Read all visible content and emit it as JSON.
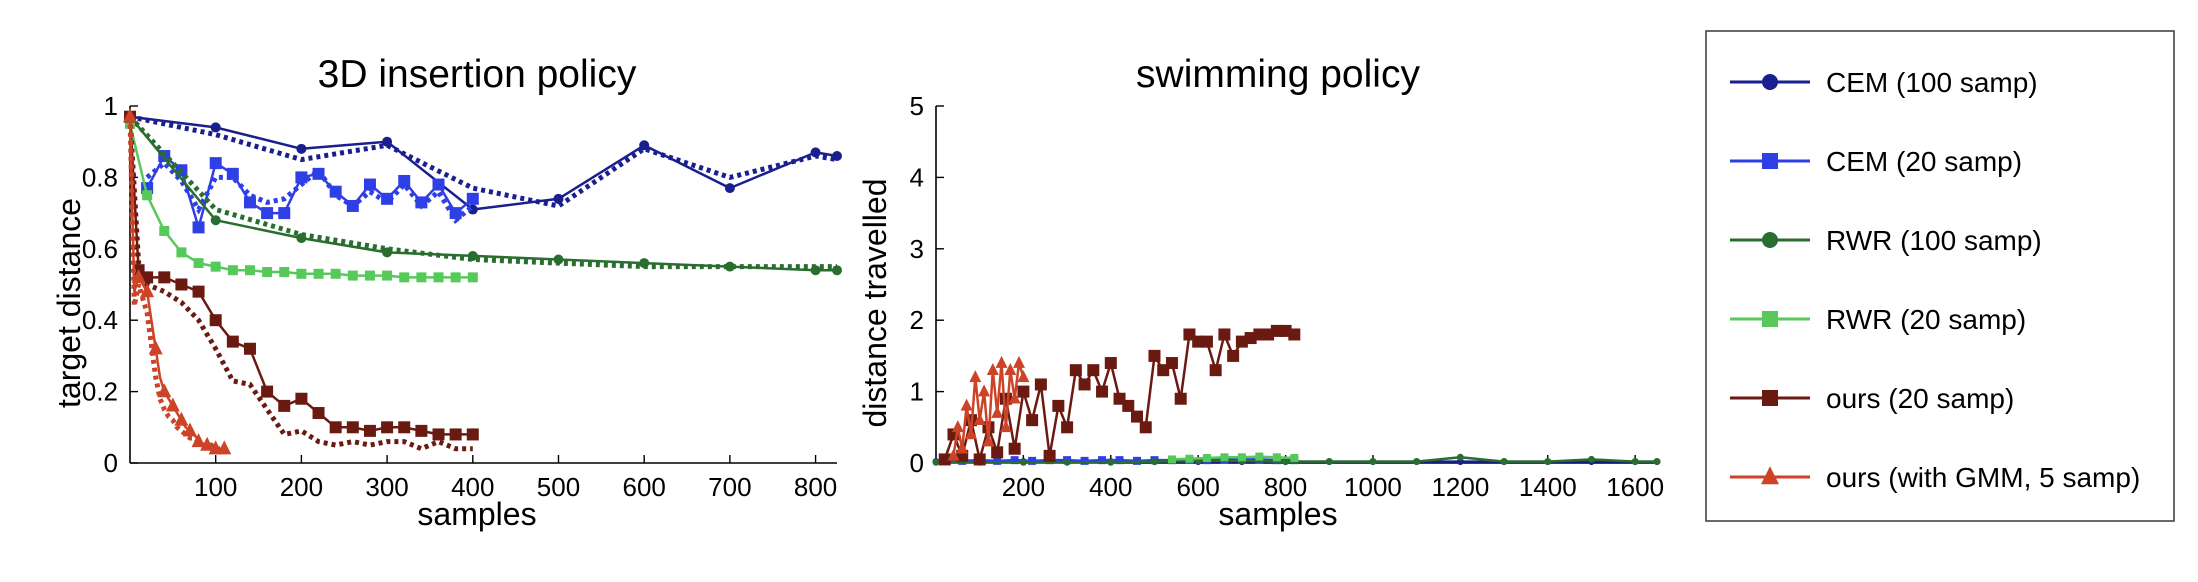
{
  "colors": {
    "cem100": "#1a1f8f",
    "cem20": "#2f3fe6",
    "rwr100": "#2a6e2f",
    "rwr20": "#57c95a",
    "ours20": "#6b1a12",
    "oursgmm": "#cd4327"
  },
  "legend": [
    {
      "key": "cem100",
      "label": "CEM (100 samp)",
      "marker": "circle"
    },
    {
      "key": "cem20",
      "label": "CEM (20 samp)",
      "marker": "square"
    },
    {
      "key": "rwr100",
      "label": "RWR (100 samp)",
      "marker": "circle"
    },
    {
      "key": "rwr20",
      "label": "RWR (20 samp)",
      "marker": "square"
    },
    {
      "key": "ours20",
      "label": "ours (20 samp)",
      "marker": "square"
    },
    {
      "key": "oursgmm",
      "label": "ours (with GMM, 5 samp)",
      "marker": "triangle"
    }
  ],
  "chart_data": [
    {
      "type": "line",
      "title": "3D insertion policy",
      "xlabel": "samples",
      "ylabel": "target distance",
      "xlim": [
        0,
        825
      ],
      "ylim": [
        0,
        1
      ],
      "xticks": [
        100,
        200,
        300,
        400,
        500,
        600,
        700,
        800
      ],
      "yticks": [
        0,
        0.2,
        0.4,
        0.6,
        0.8,
        1
      ],
      "ytick_labels": [
        "0",
        "0.2",
        "0.4",
        "0.6",
        "0.8",
        "1"
      ],
      "series": [
        {
          "key": "cem100",
          "name": "CEM (100 samp)",
          "marker": "circle",
          "every": 1,
          "msize": 5,
          "x": [
            0,
            100,
            200,
            300,
            400,
            500,
            600,
            700,
            800,
            825
          ],
          "y": [
            0.97,
            0.94,
            0.88,
            0.9,
            0.71,
            0.74,
            0.89,
            0.77,
            0.87,
            0.86
          ],
          "dotted": [
            0.97,
            0.92,
            0.85,
            0.89,
            0.77,
            0.72,
            0.88,
            0.8,
            0.86,
            0.85
          ]
        },
        {
          "key": "cem20",
          "name": "CEM (20 samp)",
          "marker": "square",
          "every": 1,
          "msize": 6,
          "x": [
            20,
            40,
            60,
            80,
            100,
            120,
            140,
            160,
            180,
            200,
            220,
            240,
            260,
            280,
            300,
            320,
            340,
            360,
            380,
            400
          ],
          "y": [
            0.77,
            0.86,
            0.82,
            0.66,
            0.84,
            0.81,
            0.73,
            0.7,
            0.7,
            0.8,
            0.81,
            0.76,
            0.72,
            0.78,
            0.74,
            0.79,
            0.73,
            0.78,
            0.7,
            0.74
          ],
          "dotted": [
            0.8,
            0.84,
            0.79,
            0.71,
            0.8,
            0.8,
            0.75,
            0.73,
            0.74,
            0.78,
            0.82,
            0.75,
            0.72,
            0.76,
            0.73,
            0.78,
            0.72,
            0.76,
            0.68,
            0.72
          ]
        },
        {
          "key": "rwr100",
          "name": "RWR (100 samp)",
          "marker": "circle",
          "every": 1,
          "msize": 5,
          "x": [
            0,
            100,
            200,
            300,
            400,
            500,
            600,
            700,
            800,
            825
          ],
          "y": [
            0.97,
            0.68,
            0.63,
            0.59,
            0.58,
            0.57,
            0.56,
            0.55,
            0.54,
            0.54
          ],
          "dotted": [
            0.97,
            0.71,
            0.64,
            0.6,
            0.57,
            0.56,
            0.55,
            0.55,
            0.55,
            0.55
          ]
        },
        {
          "key": "rwr20",
          "name": "RWR (20 samp)",
          "marker": "square",
          "every": 1,
          "msize": 5,
          "x": [
            0,
            20,
            40,
            60,
            80,
            100,
            120,
            140,
            160,
            180,
            200,
            220,
            240,
            260,
            280,
            300,
            320,
            340,
            360,
            380,
            400
          ],
          "y": [
            0.95,
            0.75,
            0.65,
            0.59,
            0.56,
            0.55,
            0.54,
            0.54,
            0.535,
            0.535,
            0.53,
            0.53,
            0.53,
            0.525,
            0.525,
            0.525,
            0.52,
            0.52,
            0.52,
            0.52,
            0.52
          ],
          "dotted": null
        },
        {
          "key": "ours20",
          "name": "ours (20 samp)",
          "marker": "square",
          "every": 1,
          "msize": 6,
          "x": [
            0,
            10,
            20,
            40,
            60,
            80,
            100,
            120,
            140,
            160,
            180,
            200,
            220,
            240,
            260,
            280,
            300,
            320,
            340,
            360,
            380,
            400
          ],
          "y": [
            0.97,
            0.54,
            0.52,
            0.52,
            0.5,
            0.48,
            0.4,
            0.34,
            0.32,
            0.2,
            0.16,
            0.18,
            0.14,
            0.1,
            0.1,
            0.09,
            0.1,
            0.1,
            0.09,
            0.08,
            0.08,
            0.08
          ],
          "dotted": [
            0.97,
            0.56,
            0.5,
            0.48,
            0.45,
            0.4,
            0.32,
            0.23,
            0.22,
            0.15,
            0.08,
            0.09,
            0.06,
            0.05,
            0.06,
            0.05,
            0.06,
            0.06,
            0.04,
            0.06,
            0.04,
            0.04
          ]
        },
        {
          "key": "oursgmm",
          "name": "ours (with GMM, 5 samp)",
          "marker": "triangle",
          "every": 2,
          "msize": 7,
          "x": [
            0,
            5,
            10,
            15,
            20,
            25,
            30,
            35,
            40,
            45,
            50,
            55,
            60,
            65,
            70,
            75,
            80,
            85,
            90,
            95,
            100,
            105,
            110
          ],
          "y": [
            0.97,
            0.48,
            0.52,
            0.5,
            0.48,
            0.4,
            0.32,
            0.24,
            0.2,
            0.18,
            0.16,
            0.14,
            0.12,
            0.1,
            0.09,
            0.08,
            0.06,
            0.05,
            0.05,
            0.05,
            0.04,
            0.04,
            0.04
          ],
          "dotted": [
            0.97,
            0.44,
            0.5,
            0.46,
            0.42,
            0.33,
            0.24,
            0.18,
            0.15,
            0.13,
            0.12,
            0.1,
            0.09,
            0.08,
            0.07,
            0.07,
            0.06,
            0.05,
            0.05,
            0.05,
            0.04,
            0.04,
            0.04
          ]
        }
      ]
    },
    {
      "type": "line",
      "title": "swimming policy",
      "xlabel": "samples",
      "ylabel": "distance travelled",
      "xlim": [
        0,
        1650
      ],
      "ylim": [
        0,
        5
      ],
      "xticks": [
        200,
        400,
        600,
        800,
        1000,
        1200,
        1400,
        1600
      ],
      "yticks": [
        0,
        1,
        2,
        3,
        4,
        5
      ],
      "ytick_labels": [
        "0",
        "1",
        "2",
        "3",
        "4",
        "5"
      ],
      "series": [
        {
          "key": "cem100",
          "name": "CEM (100 samp)",
          "marker": "circle",
          "every": 1,
          "msize": 3.5,
          "x": [
            0,
            100,
            200,
            300,
            400,
            500,
            600,
            700,
            800,
            900,
            1000,
            1100,
            1200,
            1300,
            1400,
            1500,
            1600,
            1650
          ],
          "y": [
            0.02,
            0.02,
            0.02,
            0.02,
            0.02,
            0.02,
            0.02,
            0.02,
            0.02,
            0.02,
            0.02,
            0.02,
            0.02,
            0.02,
            0.02,
            0.02,
            0.02,
            0.02
          ],
          "dotted": null
        },
        {
          "key": "cem20",
          "name": "CEM (20 samp)",
          "marker": "square",
          "every": 1,
          "msize": 4,
          "x": [
            20,
            60,
            100,
            140,
            180,
            220,
            260,
            300,
            340,
            380,
            420,
            460,
            500,
            540,
            580,
            620,
            660,
            700,
            740,
            780,
            820
          ],
          "y": [
            0.03,
            0.03,
            0.04,
            0.03,
            0.04,
            0.03,
            0.04,
            0.04,
            0.03,
            0.04,
            0.04,
            0.03,
            0.04,
            0.04,
            0.05,
            0.04,
            0.05,
            0.05,
            0.05,
            0.04,
            0.04
          ],
          "dotted": null
        },
        {
          "key": "rwr100",
          "name": "RWR (100 samp)",
          "marker": "circle",
          "every": 1,
          "msize": 3.5,
          "x": [
            0,
            100,
            200,
            300,
            400,
            500,
            600,
            700,
            800,
            900,
            1000,
            1100,
            1200,
            1300,
            1400,
            1500,
            1600,
            1650
          ],
          "y": [
            0.01,
            0.01,
            0.01,
            0.01,
            0.01,
            0.02,
            0.03,
            0.03,
            0.02,
            0.02,
            0.02,
            0.02,
            0.08,
            0.02,
            0.02,
            0.05,
            0.02,
            0.02
          ],
          "dotted": null
        },
        {
          "key": "rwr20",
          "name": "RWR (20 samp)",
          "marker": "square",
          "every": 1,
          "msize": 4,
          "x": [
            540,
            580,
            620,
            660,
            700,
            740,
            780,
            820
          ],
          "y": [
            0.05,
            0.06,
            0.07,
            0.08,
            0.08,
            0.09,
            0.08,
            0.07
          ],
          "dotted": null
        },
        {
          "key": "ours20",
          "name": "ours (20 samp)",
          "marker": "square",
          "every": 1,
          "msize": 6,
          "x": [
            20,
            40,
            60,
            80,
            100,
            120,
            140,
            160,
            180,
            200,
            220,
            240,
            260,
            280,
            300,
            320,
            340,
            360,
            380,
            400,
            420,
            440,
            460,
            480,
            500,
            520,
            540,
            560,
            580,
            600,
            620,
            640,
            660,
            680,
            700,
            720,
            740,
            760,
            780,
            800,
            820
          ],
          "y": [
            0.05,
            0.4,
            0.1,
            0.6,
            0.05,
            0.5,
            0.15,
            0.9,
            0.2,
            1.0,
            0.6,
            1.1,
            0.1,
            0.8,
            0.5,
            1.3,
            1.1,
            1.3,
            1.0,
            1.4,
            0.9,
            0.8,
            0.65,
            0.5,
            1.5,
            1.3,
            1.4,
            0.9,
            1.8,
            1.7,
            1.7,
            1.3,
            1.8,
            1.5,
            1.7,
            1.75,
            1.8,
            1.8,
            1.85,
            1.85,
            1.8
          ],
          "dotted": null
        },
        {
          "key": "oursgmm",
          "name": "ours (with GMM, 5 samp)",
          "marker": "triangle",
          "every": 1,
          "msize": 6,
          "x": [
            40,
            50,
            60,
            70,
            80,
            90,
            100,
            110,
            120,
            130,
            140,
            150,
            160,
            170,
            180,
            190,
            200
          ],
          "y": [
            0.1,
            0.5,
            0.2,
            0.8,
            0.4,
            1.2,
            0.6,
            1.0,
            0.3,
            1.3,
            0.7,
            1.4,
            0.5,
            1.3,
            0.9,
            1.4,
            1.2
          ],
          "dotted": null
        }
      ]
    }
  ]
}
